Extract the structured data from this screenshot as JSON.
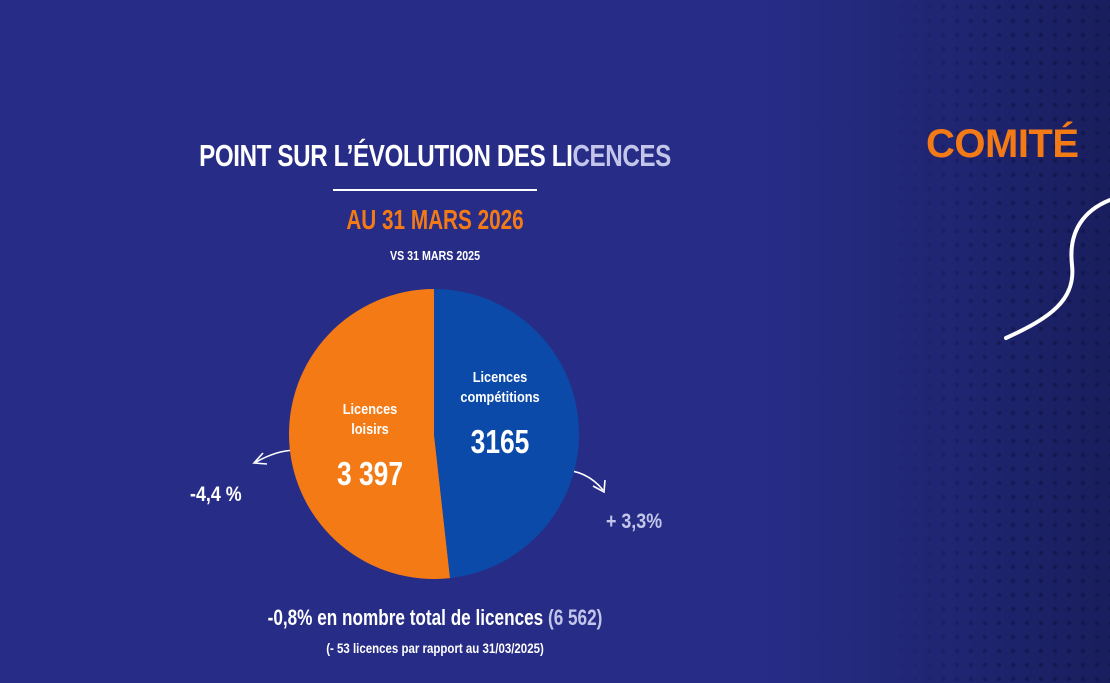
{
  "colors": {
    "background": "#272d86",
    "orange": "#f47a16",
    "blue": "#0b4aa8",
    "muted": "#c3c6ea"
  },
  "header": {
    "title_main": "POINT SUR L’ÉVOLUTION DES LI",
    "title_fade": "CENCES",
    "date": "AU 31 MARS 2026",
    "comparison": "VS 31 MARS 2025"
  },
  "side": {
    "comite": "COMITÉ"
  },
  "chart_data": {
    "type": "pie",
    "title": "POINT SUR L’ÉVOLUTION DES LICENCES",
    "subtitle": "AU 31 MARS 2026",
    "slices": [
      {
        "label_line1": "Licences",
        "label_line2": "loisirs",
        "value": 3397,
        "value_label": "3 397",
        "change": "-4,4 %",
        "color": "#f47a16"
      },
      {
        "label_line1": "Licences",
        "label_line2": "compétitions",
        "value": 3165,
        "value_label": "3165",
        "change": "+ 3,3%",
        "color": "#0b4aa8"
      }
    ]
  },
  "footer": {
    "total_main": "-0,8% en nombre total de licences ",
    "total_value": "(6 562)",
    "difference": "(- 53 licences par rapport au 31/03/2025)"
  }
}
